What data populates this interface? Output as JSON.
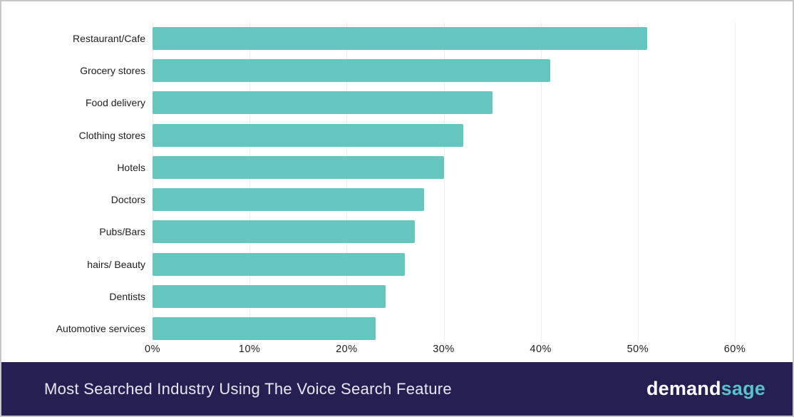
{
  "chart_data": {
    "type": "bar",
    "orientation": "horizontal",
    "title": "Most Searched Industry Using The Voice Search Feature",
    "categories": [
      "Restaurant/Cafe",
      "Grocery stores",
      "Food delivery",
      "Clothing stores",
      "Hotels",
      "Doctors",
      "Pubs/Bars",
      "hairs/ Beauty",
      "Dentists",
      "Automotive services"
    ],
    "values": [
      51,
      41,
      35,
      32,
      30,
      28,
      27,
      26,
      24,
      23
    ],
    "unit": "%",
    "xlabel": "",
    "ylabel": "",
    "x_ticks": [
      "0%",
      "10%",
      "20%",
      "30%",
      "40%",
      "50%",
      "60%"
    ],
    "x_tick_values": [
      0,
      10,
      20,
      30,
      40,
      50,
      60
    ],
    "xlim": [
      0,
      64.3
    ],
    "grid": "vertical-light",
    "legend": false
  },
  "footer": {
    "title": "Most Searched Industry Using The Voice Search Feature",
    "logo": {
      "text_primary": "demand",
      "text_accent": "sage"
    }
  },
  "colors": {
    "bar": "#65c6c0",
    "background": "#ffffff",
    "border": "#c8c8c8",
    "gridline": "#ededed",
    "label_text": "#1e1e1e",
    "footer_background": "#262052",
    "logo_primary": "#ffffff",
    "logo_accent": "#57c2c7"
  }
}
